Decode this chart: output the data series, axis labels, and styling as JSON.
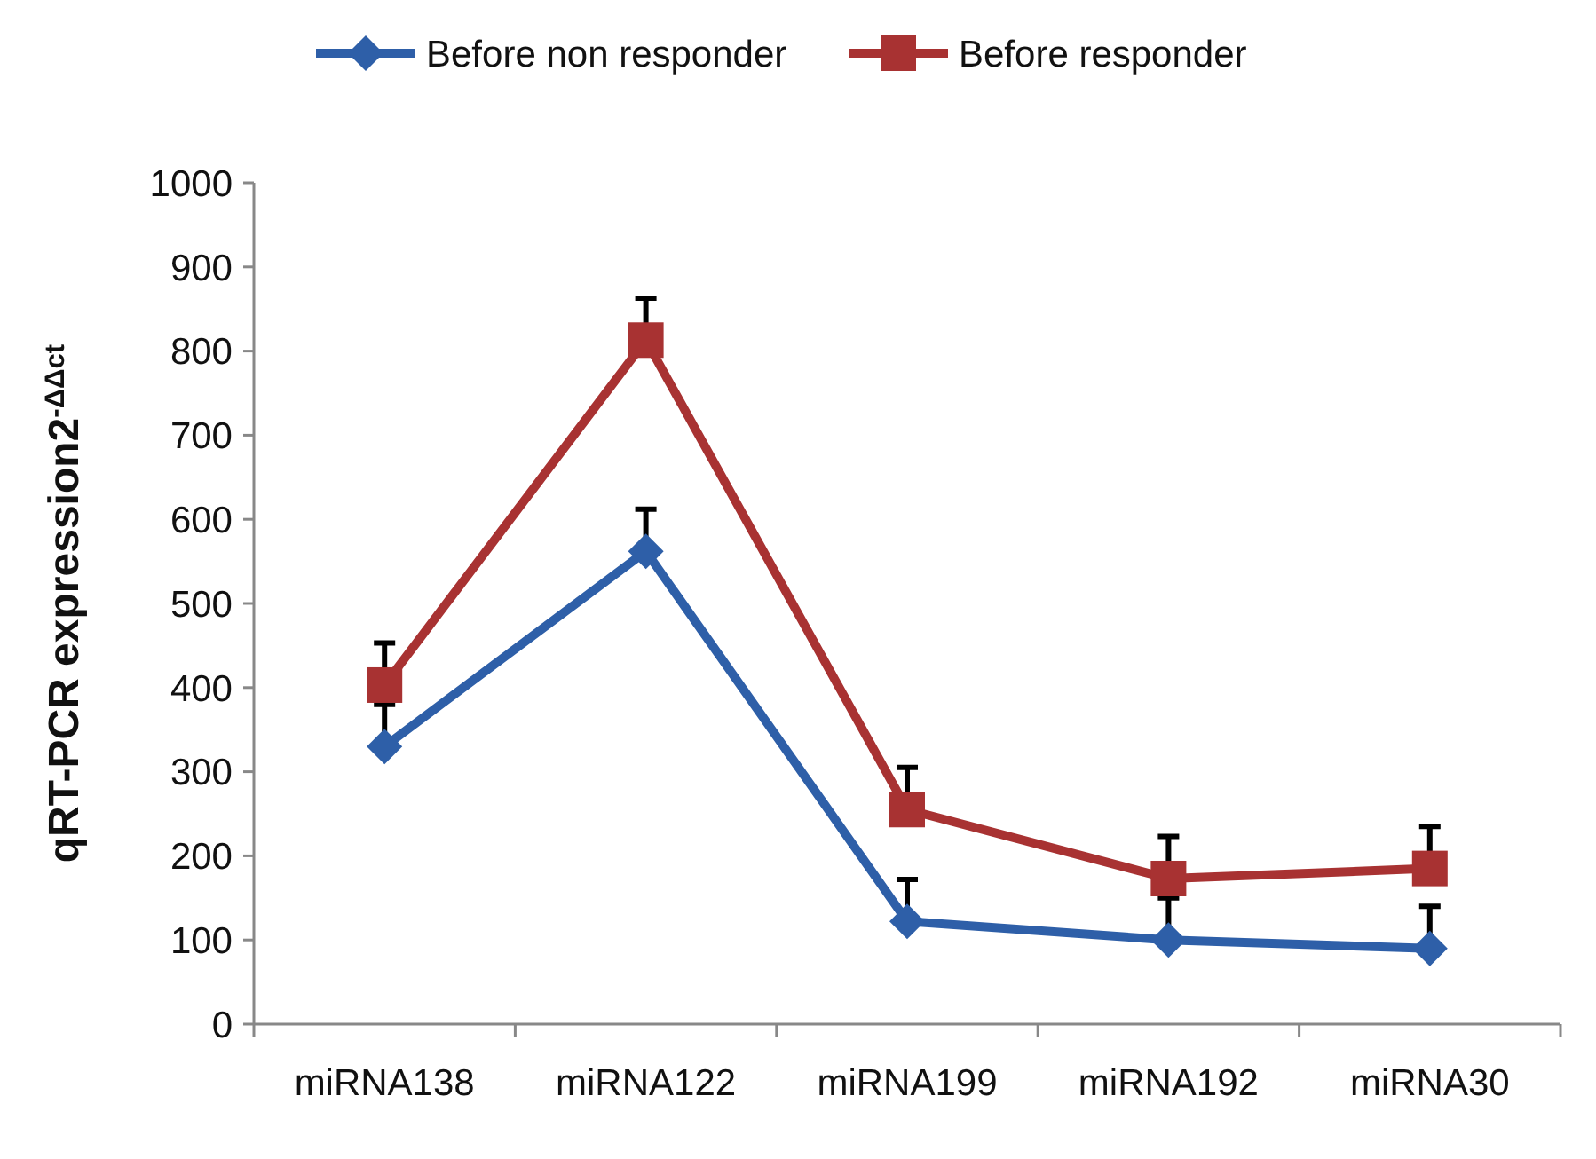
{
  "chart_data": {
    "type": "line",
    "ylabel": "qRT-PCR expression2$^{-ΔΔct}$",
    "categories": [
      "miRNA138",
      "miRNA122",
      "miRNA199",
      "miRNA192",
      "miRNA30"
    ],
    "series": [
      {
        "name": "Before non responder",
        "color": "#2e5fa8",
        "marker": "diamond",
        "values": [
          330,
          562,
          122,
          100,
          90
        ],
        "errors": [
          [
            330,
            380
          ],
          [
            562,
            612
          ],
          [
            122,
            172
          ],
          [
            100,
            150
          ],
          [
            90,
            140
          ]
        ]
      },
      {
        "name": "Before  responder",
        "color": "#a83232",
        "marker": "square",
        "values": [
          403,
          813,
          255,
          173,
          185
        ],
        "errors": [
          [
            403,
            453
          ],
          [
            813,
            863
          ],
          [
            255,
            305
          ],
          [
            173,
            223
          ],
          [
            185,
            235
          ]
        ]
      }
    ],
    "ylim": [
      0,
      1000
    ],
    "yticks": [
      0,
      100,
      200,
      300,
      400,
      500,
      600,
      700,
      800,
      900,
      1000
    ],
    "grid": false,
    "legend": "top",
    "line_style": "solid"
  }
}
